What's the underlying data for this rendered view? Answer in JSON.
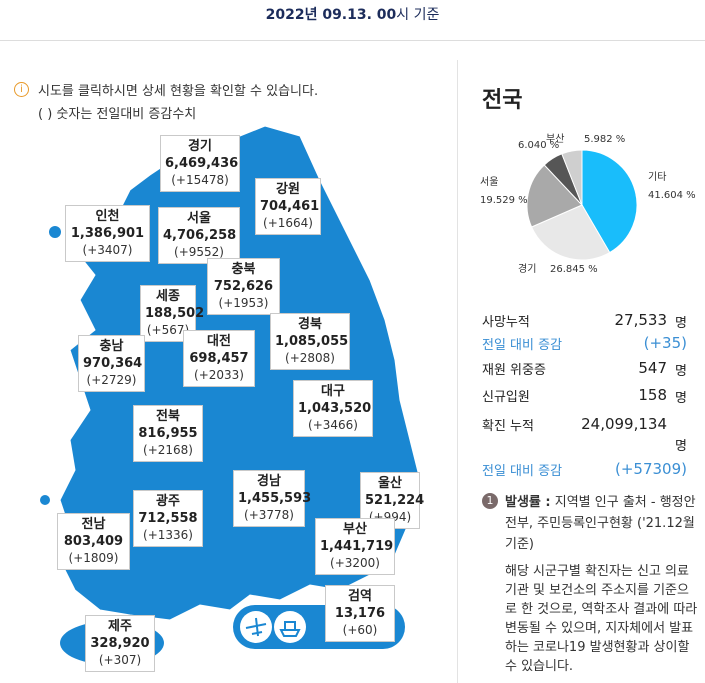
{
  "header": {
    "date": "2022년 09.13. 00",
    "suffix": "시 기준"
  },
  "notice": {
    "icon": "i",
    "line1": "시도를 클릭하시면 상세 현황을 확인할 수 있습니다.",
    "line2": "( ) 숫자는 전일대비 증감수치"
  },
  "regions": [
    {
      "name": "경기",
      "total": "6,469,436",
      "change": "(+15478)"
    },
    {
      "name": "강원",
      "total": "704,461",
      "change": "(+1664)"
    },
    {
      "name": "인천",
      "total": "1,386,901",
      "change": "(+3407)"
    },
    {
      "name": "서울",
      "total": "4,706,258",
      "change": "(+9552)"
    },
    {
      "name": "충북",
      "total": "752,626",
      "change": "(+1953)"
    },
    {
      "name": "세종",
      "total": "188,502",
      "change": "(+567)"
    },
    {
      "name": "경북",
      "total": "1,085,055",
      "change": "(+2808)"
    },
    {
      "name": "충남",
      "total": "970,364",
      "change": "(+2729)"
    },
    {
      "name": "대전",
      "total": "698,457",
      "change": "(+2033)"
    },
    {
      "name": "대구",
      "total": "1,043,520",
      "change": "(+3466)"
    },
    {
      "name": "전북",
      "total": "816,955",
      "change": "(+2168)"
    },
    {
      "name": "경남",
      "total": "1,455,593",
      "change": "(+3778)"
    },
    {
      "name": "울산",
      "total": "521,224",
      "change": "(+994)"
    },
    {
      "name": "광주",
      "total": "712,558",
      "change": "(+1336)"
    },
    {
      "name": "부산",
      "total": "1,441,719",
      "change": "(+3200)"
    },
    {
      "name": "전남",
      "total": "803,409",
      "change": "(+1809)"
    },
    {
      "name": "제주",
      "total": "328,920",
      "change": "(+307)"
    },
    {
      "name": "검역",
      "total": "13,176",
      "change": "(+60)"
    }
  ],
  "panel": {
    "title": "전국",
    "pie": {
      "slices": [
        {
          "name": "기타",
          "value": 41.604,
          "label": "41.604 %",
          "color": "#19bdfb"
        },
        {
          "name": "경기",
          "value": 26.845,
          "label": "26.845 %",
          "color": "#e8e8e8"
        },
        {
          "name": "서울",
          "value": 19.529,
          "label": "19.529 %",
          "color": "#a9a9a9"
        },
        {
          "name": null,
          "value": 6.04,
          "label": "6.040 %",
          "color": "#565656"
        },
        {
          "name": "부산",
          "value": 5.982,
          "label": "5.982 %",
          "color": "#cfcfcf"
        }
      ]
    },
    "stats": [
      {
        "label": "사망누적",
        "value": "27,533",
        "unit": "명",
        "highlight": false
      },
      {
        "label": "전일 대비 증감",
        "value": "(+35)",
        "unit": null,
        "highlight": true
      },
      {
        "label": "재원 위중증",
        "value": "547",
        "unit": "명",
        "highlight": false
      },
      {
        "label": "신규입원",
        "value": "158",
        "unit": "명",
        "highlight": false
      },
      {
        "label": "확진 누적",
        "value": "24,099,134",
        "unit": "명",
        "highlight": false
      },
      {
        "label": "전일 대비 증감",
        "value": "(+57309)",
        "unit": null,
        "highlight": true
      }
    ],
    "note": {
      "badge": "1",
      "title": "발생률 :",
      "source": "지역별 인구 출처 - 행정안전부, 주민등록인구현황 ('21.12월 기준)",
      "body": "해당 시군구별 확진자는 신고 의료기관 및 보건소의 주소지를 기준으로 한 것으로, 역학조사 결과에 따라 변동될 수 있으며, 지자체에서 발표하는 코로나19 발생현황과 상이할 수 있습니다."
    }
  }
}
